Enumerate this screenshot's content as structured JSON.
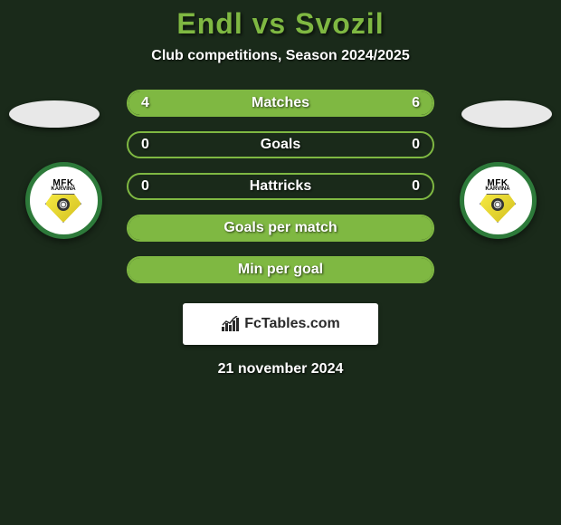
{
  "title": "Endl vs Svozil",
  "subtitle": "Club competitions, Season 2024/2025",
  "date": "21 november 2024",
  "fctables_label": "FcTables.com",
  "colors": {
    "accent": "#7fb842",
    "bg": "#1a2a1a",
    "text": "#ffffff",
    "badge_border": "#2d7a3a",
    "badge_bg": "#ffffff"
  },
  "badges": {
    "left": {
      "name": "MFK",
      "sub": "KARVINÁ"
    },
    "right": {
      "name": "MFK",
      "sub": "KARVINÁ"
    }
  },
  "stats": [
    {
      "label": "Matches",
      "left_val": "4",
      "right_val": "6",
      "left_pct": 40,
      "right_pct": 60,
      "full": false
    },
    {
      "label": "Goals",
      "left_val": "0",
      "right_val": "0",
      "left_pct": 0,
      "right_pct": 0,
      "full": false
    },
    {
      "label": "Hattricks",
      "left_val": "0",
      "right_val": "0",
      "left_pct": 0,
      "right_pct": 0,
      "full": false
    },
    {
      "label": "Goals per match",
      "left_val": "",
      "right_val": "",
      "left_pct": 0,
      "right_pct": 0,
      "full": true
    },
    {
      "label": "Min per goal",
      "left_val": "",
      "right_val": "",
      "left_pct": 0,
      "right_pct": 0,
      "full": true
    }
  ]
}
